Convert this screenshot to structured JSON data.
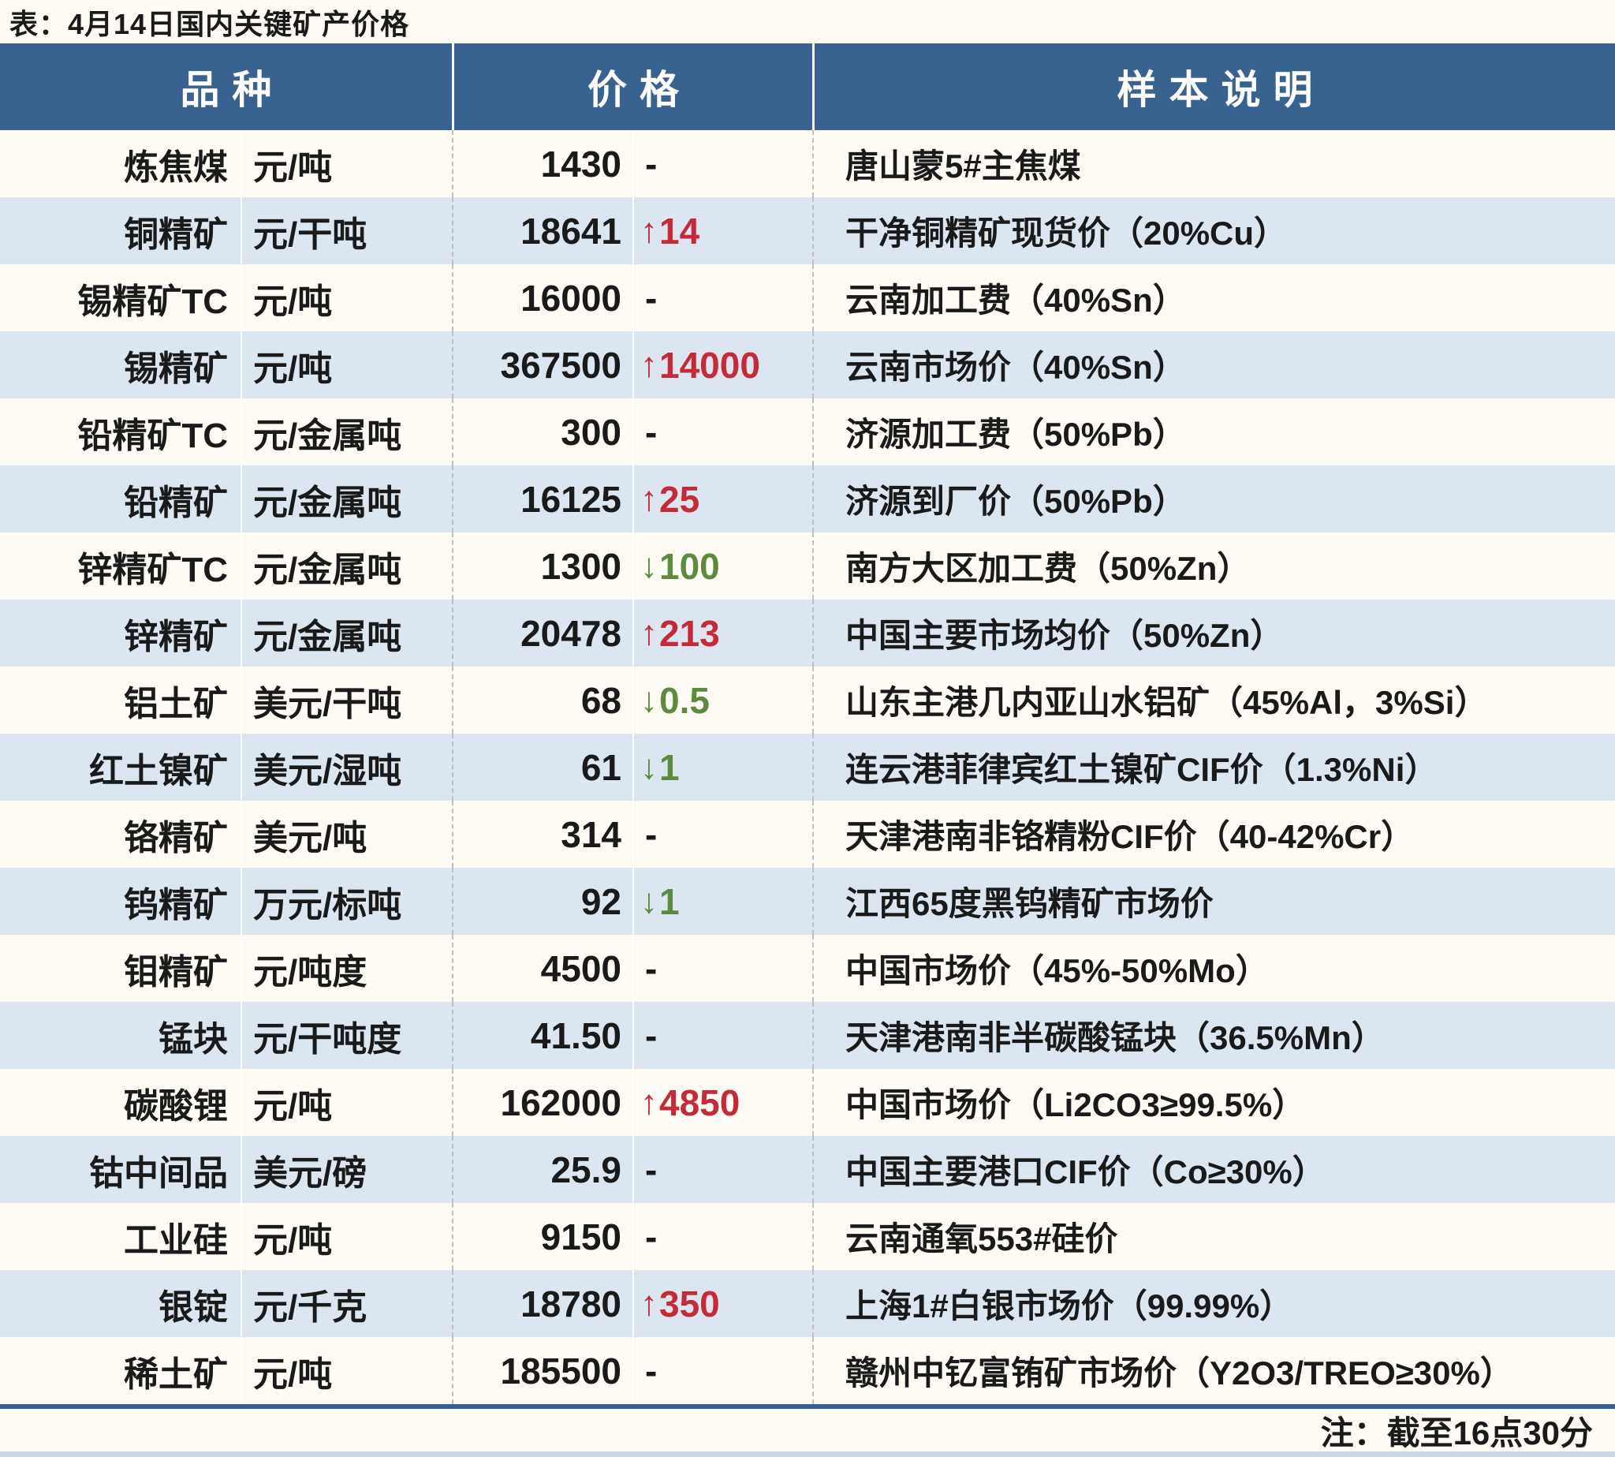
{
  "title": "表：4月14日国内关键矿产价格",
  "table": {
    "headers": {
      "variety": "品种",
      "price": "价格",
      "sample": "样本说明"
    },
    "rows": [
      {
        "name": "炼焦煤",
        "unit": "元/吨",
        "price": "1430",
        "change": "-",
        "dir": "none",
        "desc": "唐山蒙5#主焦煤"
      },
      {
        "name": "铜精矿",
        "unit": "元/干吨",
        "price": "18641",
        "change": "14",
        "dir": "up",
        "desc": "干净铜精矿现货价（20%Cu）"
      },
      {
        "name": "锡精矿TC",
        "unit": "元/吨",
        "price": "16000",
        "change": "-",
        "dir": "none",
        "desc": "云南加工费（40%Sn）"
      },
      {
        "name": "锡精矿",
        "unit": "元/吨",
        "price": "367500",
        "change": "14000",
        "dir": "up",
        "desc": "云南市场价（40%Sn）"
      },
      {
        "name": "铅精矿TC",
        "unit": "元/金属吨",
        "price": "300",
        "change": "-",
        "dir": "none",
        "desc": "济源加工费（50%Pb）"
      },
      {
        "name": "铅精矿",
        "unit": "元/金属吨",
        "price": "16125",
        "change": "25",
        "dir": "up",
        "desc": "济源到厂价（50%Pb）"
      },
      {
        "name": "锌精矿TC",
        "unit": "元/金属吨",
        "price": "1300",
        "change": "100",
        "dir": "down",
        "desc": "南方大区加工费（50%Zn）"
      },
      {
        "name": "锌精矿",
        "unit": "元/金属吨",
        "price": "20478",
        "change": "213",
        "dir": "up",
        "desc": "中国主要市场均价（50%Zn）"
      },
      {
        "name": "铝土矿",
        "unit": "美元/干吨",
        "price": "68",
        "change": "0.5",
        "dir": "down",
        "desc": "山东主港几内亚山水铝矿（45%Al，3%Si）"
      },
      {
        "name": "红土镍矿",
        "unit": "美元/湿吨",
        "price": "61",
        "change": "1",
        "dir": "down",
        "desc": "连云港菲律宾红土镍矿CIF价（1.3%Ni）"
      },
      {
        "name": "铬精矿",
        "unit": "美元/吨",
        "price": "314",
        "change": "-",
        "dir": "none",
        "desc": "天津港南非铬精粉CIF价（40-42%Cr）"
      },
      {
        "name": "钨精矿",
        "unit": "万元/标吨",
        "price": "92",
        "change": "1",
        "dir": "down",
        "desc": "江西65度黑钨精矿市场价"
      },
      {
        "name": "钼精矿",
        "unit": "元/吨度",
        "price": "4500",
        "change": "-",
        "dir": "none",
        "desc": "中国市场价（45%-50%Mo）"
      },
      {
        "name": "锰块",
        "unit": "元/干吨度",
        "price": "41.50",
        "change": "-",
        "dir": "none",
        "desc": "天津港南非半碳酸锰块（36.5%Mn）"
      },
      {
        "name": "碳酸锂",
        "unit": "元/吨",
        "price": "162000",
        "change": "4850",
        "dir": "up",
        "desc": "中国市场价（Li2CO3≥99.5%）"
      },
      {
        "name": "钴中间品",
        "unit": "美元/磅",
        "price": "25.9",
        "change": "-",
        "dir": "none",
        "desc": "中国主要港口CIF价（Co≥30%）"
      },
      {
        "name": "工业硅",
        "unit": "元/吨",
        "price": "9150",
        "change": "-",
        "dir": "none",
        "desc": "云南通氧553#硅价"
      },
      {
        "name": "银锭",
        "unit": "元/千克",
        "price": "18780",
        "change": "350",
        "dir": "up",
        "desc": "上海1#白银市场价（99.99%）"
      },
      {
        "name": "稀土矿",
        "unit": "元/吨",
        "price": "185500",
        "change": "-",
        "dir": "none",
        "desc": "赣州中钇富铕矿市场价（Y2O3/TREO≥30%）"
      }
    ],
    "footnote": "注：截至16点30分"
  },
  "icons": {
    "up_arrow": "↑",
    "down_arrow": "↓"
  },
  "colors": {
    "header_bg": "#386390",
    "row_bg": "#fdfbf3",
    "row_alt_bg": "#dce6f1",
    "up_red": "#c42a38",
    "down_green": "#5d8a3e",
    "border_blue": "#32608f",
    "bottom_strip": "#ccd7e5",
    "text": "#1a1a1a"
  }
}
